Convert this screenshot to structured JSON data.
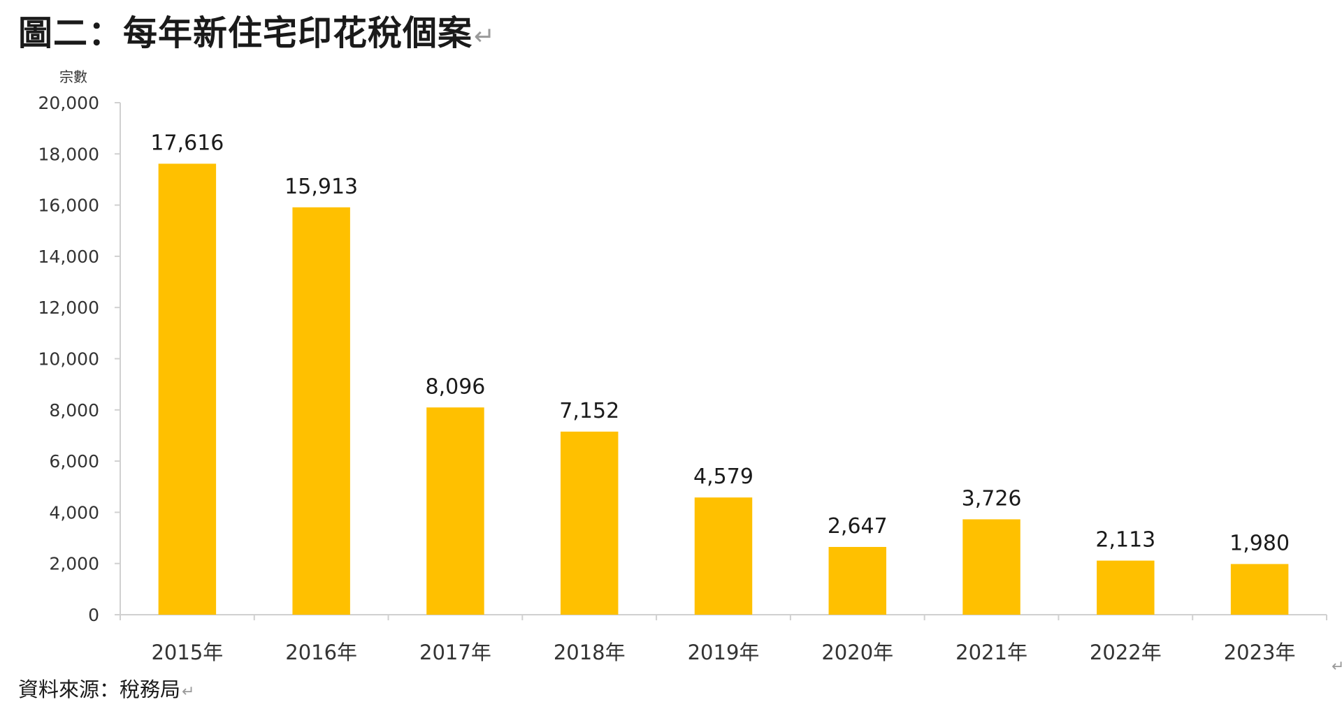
{
  "figure": {
    "title": "圖二：每年新住宅印花稅個案",
    "paragraph_mark": "↵",
    "source": "資料來源：稅務局"
  },
  "chart_data": {
    "type": "bar",
    "title": "圖二：每年新住宅印花稅個案",
    "xlabel": "",
    "ylabel": "宗數",
    "categories": [
      "2015年",
      "2016年",
      "2017年",
      "2018年",
      "2019年",
      "2020年",
      "2021年",
      "2022年",
      "2023年"
    ],
    "values": [
      17616,
      15913,
      8096,
      7152,
      4579,
      2647,
      3726,
      2113,
      1980
    ],
    "data_labels": [
      "17,616",
      "15,913",
      "8,096",
      "7,152",
      "4,579",
      "2,647",
      "3,726",
      "2,113",
      "1,980"
    ],
    "ylim": [
      0,
      20000
    ],
    "yticks": [
      0,
      2000,
      4000,
      6000,
      8000,
      10000,
      12000,
      14000,
      16000,
      18000,
      20000
    ],
    "ytick_labels": [
      "0",
      "2,000",
      "4,000",
      "6,000",
      "8,000",
      "10,000",
      "12,000",
      "14,000",
      "16,000",
      "18,000",
      "20,000"
    ],
    "grid": false,
    "legend": "none",
    "bar_color": "#FFC000"
  }
}
